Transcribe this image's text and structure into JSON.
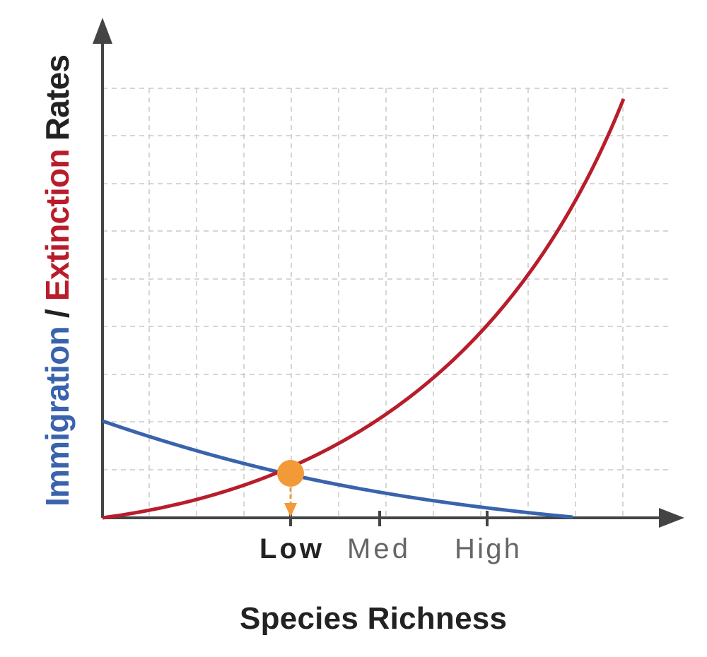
{
  "y_axis_label": {
    "immigration": "Immigration",
    "slash": "/",
    "extinction": "Extinction",
    "rates": "Rates"
  },
  "x_ticks": [
    "Low",
    "Med",
    "High"
  ],
  "x_axis_label": "Species Richness"
}
